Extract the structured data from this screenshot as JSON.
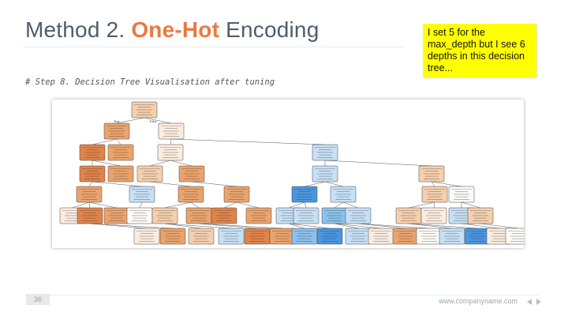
{
  "slide": {
    "title_prefix": "Method 2. ",
    "title_accent": "One-Hot",
    "title_suffix": " Encoding",
    "step": "# Step 8. Decision Tree Visualisation after tuning",
    "note": "I set 5 for the max_depth but I see 6 depths in this decision tree...",
    "page_number": "36",
    "footer_url": "www.companyname.com"
  },
  "tree": {
    "edge_labels": {
      "true": "True",
      "false": "False"
    },
    "colors": {
      "dark_orange": "#e0844a",
      "mid_orange": "#eba36d",
      "light_orange": "#f5cfae",
      "pale": "#fbece0",
      "white": "#fdfaf7",
      "light_blue": "#c6e0f6",
      "mid_blue": "#8cc1ec",
      "dark_blue": "#4a96e0"
    },
    "levels": [
      [
        "light_orange"
      ],
      [
        "mid_orange",
        "pale"
      ],
      [
        "dark_orange",
        "mid_orange",
        "pale",
        "light_blue"
      ],
      [
        "dark_orange",
        "mid_orange",
        "light_orange",
        "mid_orange",
        "light_blue",
        "light_orange"
      ],
      [
        "mid_orange",
        "light_blue",
        "mid_orange",
        "mid_orange",
        "dark_blue",
        "light_blue",
        "light_orange",
        "white"
      ],
      [
        "pale",
        "dark_orange",
        "mid_orange",
        "white",
        "light_orange",
        "mid_orange",
        "dark_orange",
        "mid_orange",
        "light_blue",
        "light_blue",
        "mid_blue",
        "light_blue",
        "light_orange",
        "pale",
        "light_blue",
        "light_orange"
      ],
      [
        "pale",
        "mid_orange",
        "light_orange",
        "light_blue",
        "dark_orange",
        "mid_orange",
        "mid_blue",
        "dark_blue",
        "light_blue",
        "pale",
        "mid_orange",
        "white",
        "light_blue",
        "dark_blue",
        "pale",
        "white"
      ]
    ]
  }
}
